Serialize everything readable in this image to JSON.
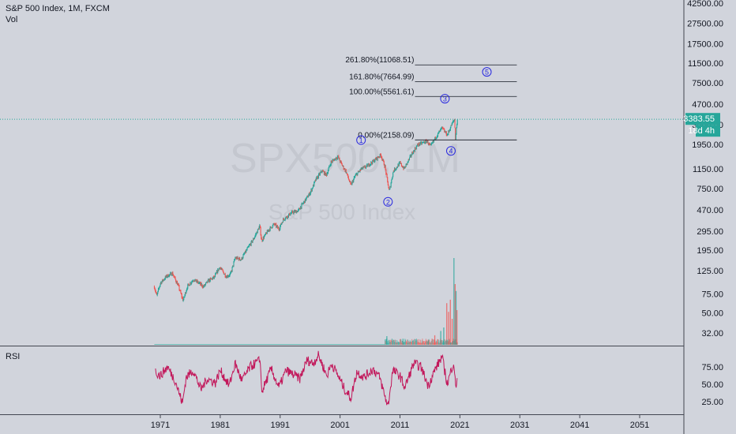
{
  "header": {
    "title": "S&P 500 Index, 1M, FXCM",
    "volume_label": "Vol",
    "rsi_label": "RSI"
  },
  "watermark": {
    "symbol": "SPX500, 1M",
    "name": "S&P 500 Index"
  },
  "price_badge": {
    "price": "3383.55",
    "countdown": "18d 4h"
  },
  "colors": {
    "background": "#d1d4dc",
    "up": "#26a69a",
    "down": "#ef5350",
    "rsi_line": "#c2185b",
    "wave_label": "#2a2ae0",
    "price_line": "#26a69a",
    "fib_line": "#131722"
  },
  "chart_data": {
    "type": "candlestick",
    "x_axis": {
      "ticks": [
        "1971",
        "1981",
        "1991",
        "2001",
        "2011",
        "2021",
        "2031",
        "2041",
        "2051"
      ],
      "range": [
        1968.4,
        2057.5
      ]
    },
    "price_axis": {
      "scale": "log",
      "ticks": [
        "42500.00",
        "27500.00",
        "17500.00",
        "11500.00",
        "7500.00",
        "4700.00",
        "3000.00",
        "1950.00",
        "1150.00",
        "750.00",
        "470.00",
        "295.00",
        "195.00",
        "125.00",
        "75.00",
        "50.00",
        "32.00"
      ],
      "range": [
        28,
        42500
      ]
    },
    "rsi_axis": {
      "ticks": [
        "75.00",
        "50.00",
        "25.00"
      ],
      "range": [
        10,
        100
      ]
    },
    "fib_levels": [
      {
        "label": "261.80%(11068.51)",
        "value": 11068.51
      },
      {
        "label": "161.80%(7664.99)",
        "value": 7664.99
      },
      {
        "label": "100.00%(5561.61)",
        "value": 5561.61
      },
      {
        "label": "0.00%(2158.09)",
        "value": 2158.09
      }
    ],
    "fib_x_range": [
      2013.5,
      2030.5
    ],
    "wave_labels": [
      {
        "label": "1",
        "x": 2004.5,
        "value": 2150
      },
      {
        "label": "2",
        "x": 2009.0,
        "value": 560
      },
      {
        "label": "3",
        "x": 2018.5,
        "value": 5300
      },
      {
        "label": "4",
        "x": 2019.5,
        "value": 1700
      },
      {
        "label": "5",
        "x": 2025.5,
        "value": 9500
      }
    ],
    "current_price": 3383.55,
    "price_path": [
      [
        1970.0,
        88
      ],
      [
        1970.4,
        72
      ],
      [
        1971.0,
        95
      ],
      [
        1972.0,
        110
      ],
      [
        1973.0,
        118
      ],
      [
        1974.0,
        90
      ],
      [
        1974.8,
        65
      ],
      [
        1975.5,
        88
      ],
      [
        1976.5,
        103
      ],
      [
        1977.5,
        95
      ],
      [
        1978.2,
        88
      ],
      [
        1979.0,
        100
      ],
      [
        1980.0,
        108
      ],
      [
        1980.9,
        135
      ],
      [
        1982.0,
        110
      ],
      [
        1982.7,
        115
      ],
      [
        1983.5,
        165
      ],
      [
        1984.5,
        160
      ],
      [
        1985.5,
        200
      ],
      [
        1986.5,
        245
      ],
      [
        1987.6,
        330
      ],
      [
        1987.9,
        240
      ],
      [
        1989.0,
        300
      ],
      [
        1990.0,
        345
      ],
      [
        1990.8,
        310
      ],
      [
        1991.5,
        380
      ],
      [
        1993.0,
        445
      ],
      [
        1994.0,
        460
      ],
      [
        1995.0,
        560
      ],
      [
        1996.0,
        680
      ],
      [
        1997.0,
        920
      ],
      [
        1998.0,
        1100
      ],
      [
        1998.7,
        1000
      ],
      [
        1999.5,
        1330
      ],
      [
        2000.6,
        1500
      ],
      [
        2001.5,
        1200
      ],
      [
        2002.0,
        1080
      ],
      [
        2002.8,
        800
      ],
      [
        2003.5,
        980
      ],
      [
        2004.5,
        1140
      ],
      [
        2005.5,
        1220
      ],
      [
        2006.5,
        1350
      ],
      [
        2007.8,
        1560
      ],
      [
        2008.5,
        1200
      ],
      [
        2009.2,
        700
      ],
      [
        2009.9,
        1100
      ],
      [
        2011.0,
        1300
      ],
      [
        2011.7,
        1150
      ],
      [
        2013.0,
        1600
      ],
      [
        2014.0,
        1950
      ],
      [
        2015.5,
        2100
      ],
      [
        2016.1,
        1870
      ],
      [
        2017.0,
        2300
      ],
      [
        2018.0,
        2800
      ],
      [
        2018.9,
        2400
      ],
      [
        2019.6,
        3000
      ],
      [
        2020.1,
        3380
      ],
      [
        2020.25,
        2230
      ],
      [
        2020.5,
        3100
      ],
      [
        2020.6,
        3383.55
      ]
    ],
    "volume_spikes": [
      [
        2008.8,
        0.1
      ],
      [
        2011.5,
        0.07
      ],
      [
        2015.7,
        0.06
      ],
      [
        2016.8,
        0.11
      ],
      [
        2017.8,
        0.16
      ],
      [
        2018.3,
        0.2
      ],
      [
        2018.8,
        0.48
      ],
      [
        2019.1,
        0.38
      ],
      [
        2019.4,
        0.52
      ],
      [
        2019.7,
        0.3
      ],
      [
        2020.0,
        1.0
      ],
      [
        2020.2,
        0.7
      ],
      [
        2020.35,
        0.62
      ],
      [
        2020.5,
        0.4
      ]
    ],
    "rsi_path": [
      [
        1970.2,
        68
      ],
      [
        1971.0,
        62
      ],
      [
        1972.2,
        75
      ],
      [
        1973.5,
        55
      ],
      [
        1974.7,
        22
      ],
      [
        1975.3,
        60
      ],
      [
        1976.5,
        70
      ],
      [
        1977.8,
        42
      ],
      [
        1978.8,
        58
      ],
      [
        1980.2,
        52
      ],
      [
        1981.0,
        70
      ],
      [
        1982.5,
        48
      ],
      [
        1983.5,
        80
      ],
      [
        1984.6,
        55
      ],
      [
        1986.0,
        75
      ],
      [
        1987.7,
        85
      ],
      [
        1987.9,
        38
      ],
      [
        1989.5,
        72
      ],
      [
        1990.8,
        45
      ],
      [
        1992.0,
        70
      ],
      [
        1994.3,
        58
      ],
      [
        1995.5,
        85
      ],
      [
        1996.5,
        80
      ],
      [
        1997.4,
        92
      ],
      [
        1998.8,
        62
      ],
      [
        1999.6,
        80
      ],
      [
        2000.8,
        60
      ],
      [
        2001.8,
        42
      ],
      [
        2002.8,
        30
      ],
      [
        2003.8,
        68
      ],
      [
        2005.0,
        60
      ],
      [
        2006.5,
        72
      ],
      [
        2007.6,
        60
      ],
      [
        2008.5,
        32
      ],
      [
        2009.0,
        18
      ],
      [
        2009.8,
        70
      ],
      [
        2011.0,
        62
      ],
      [
        2011.8,
        45
      ],
      [
        2013.3,
        80
      ],
      [
        2014.5,
        75
      ],
      [
        2015.7,
        48
      ],
      [
        2016.8,
        70
      ],
      [
        2018.0,
        90
      ],
      [
        2018.9,
        50
      ],
      [
        2019.6,
        72
      ],
      [
        2020.0,
        82
      ],
      [
        2020.3,
        42
      ],
      [
        2020.6,
        66
      ]
    ]
  }
}
